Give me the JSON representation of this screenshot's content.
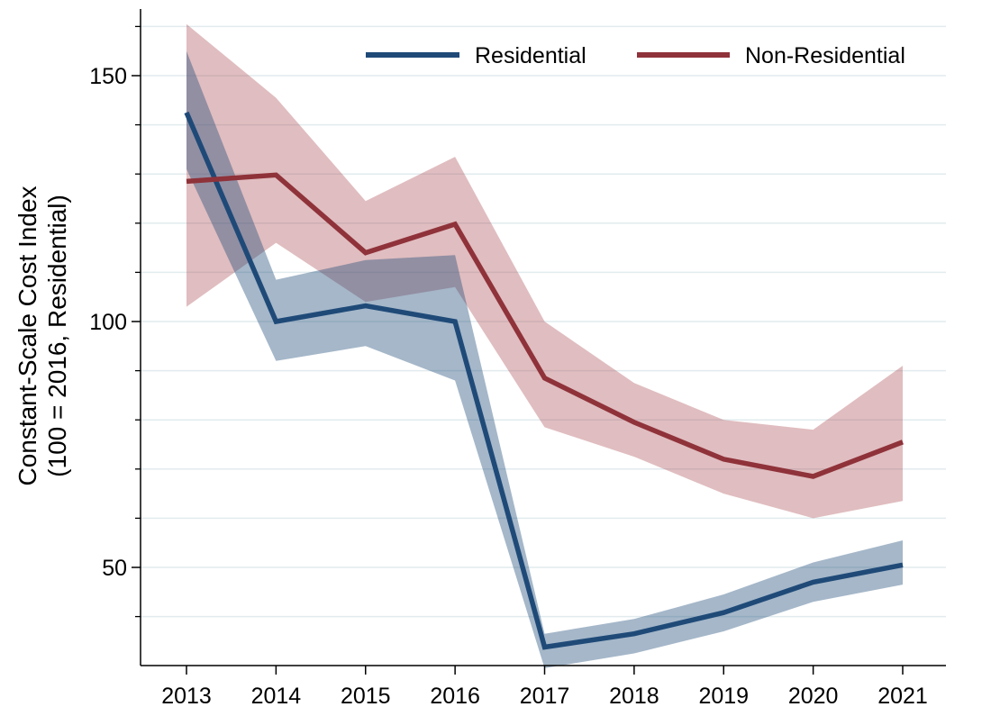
{
  "chart_data": {
    "type": "line",
    "title": "",
    "xlabel": "",
    "ylabel_line1": "Constant-Scale Cost Index",
    "ylabel_line2": "(100 = 2016, Residential)",
    "x": [
      "2013",
      "2014",
      "2015",
      "2016",
      "2017",
      "2018",
      "2019",
      "2020",
      "2021"
    ],
    "y_ticks": [
      50,
      100,
      150
    ],
    "y_minor_ticks": [
      40,
      60,
      70,
      80,
      90,
      110,
      120,
      130,
      140,
      160
    ],
    "ylim": [
      30,
      163
    ],
    "grid": true,
    "legend_position": "top-right",
    "series": [
      {
        "name": "Residential",
        "color": "#1f4a78",
        "band_color": "#1f4a78",
        "values": [
          142.5,
          100,
          103.2,
          100,
          33.8,
          36.5,
          40.8,
          47,
          50.5
        ],
        "lower": [
          131,
          92,
          95,
          88,
          29.5,
          32.5,
          37,
          43,
          46.5
        ],
        "upper": [
          155,
          108.5,
          112.5,
          113.5,
          36.5,
          39.5,
          44.5,
          51,
          55.5
        ]
      },
      {
        "name": "Non-Residential",
        "color": "#8f323a",
        "band_color": "#a8474f",
        "values": [
          128.5,
          129.8,
          114,
          119.8,
          88.5,
          79.5,
          72,
          68.5,
          75.5
        ],
        "lower": [
          103,
          116,
          104,
          107,
          78.5,
          72.5,
          65,
          60,
          63.5
        ],
        "upper": [
          160.5,
          145.5,
          124.5,
          133.5,
          100,
          87.5,
          80,
          78,
          91
        ]
      }
    ]
  }
}
